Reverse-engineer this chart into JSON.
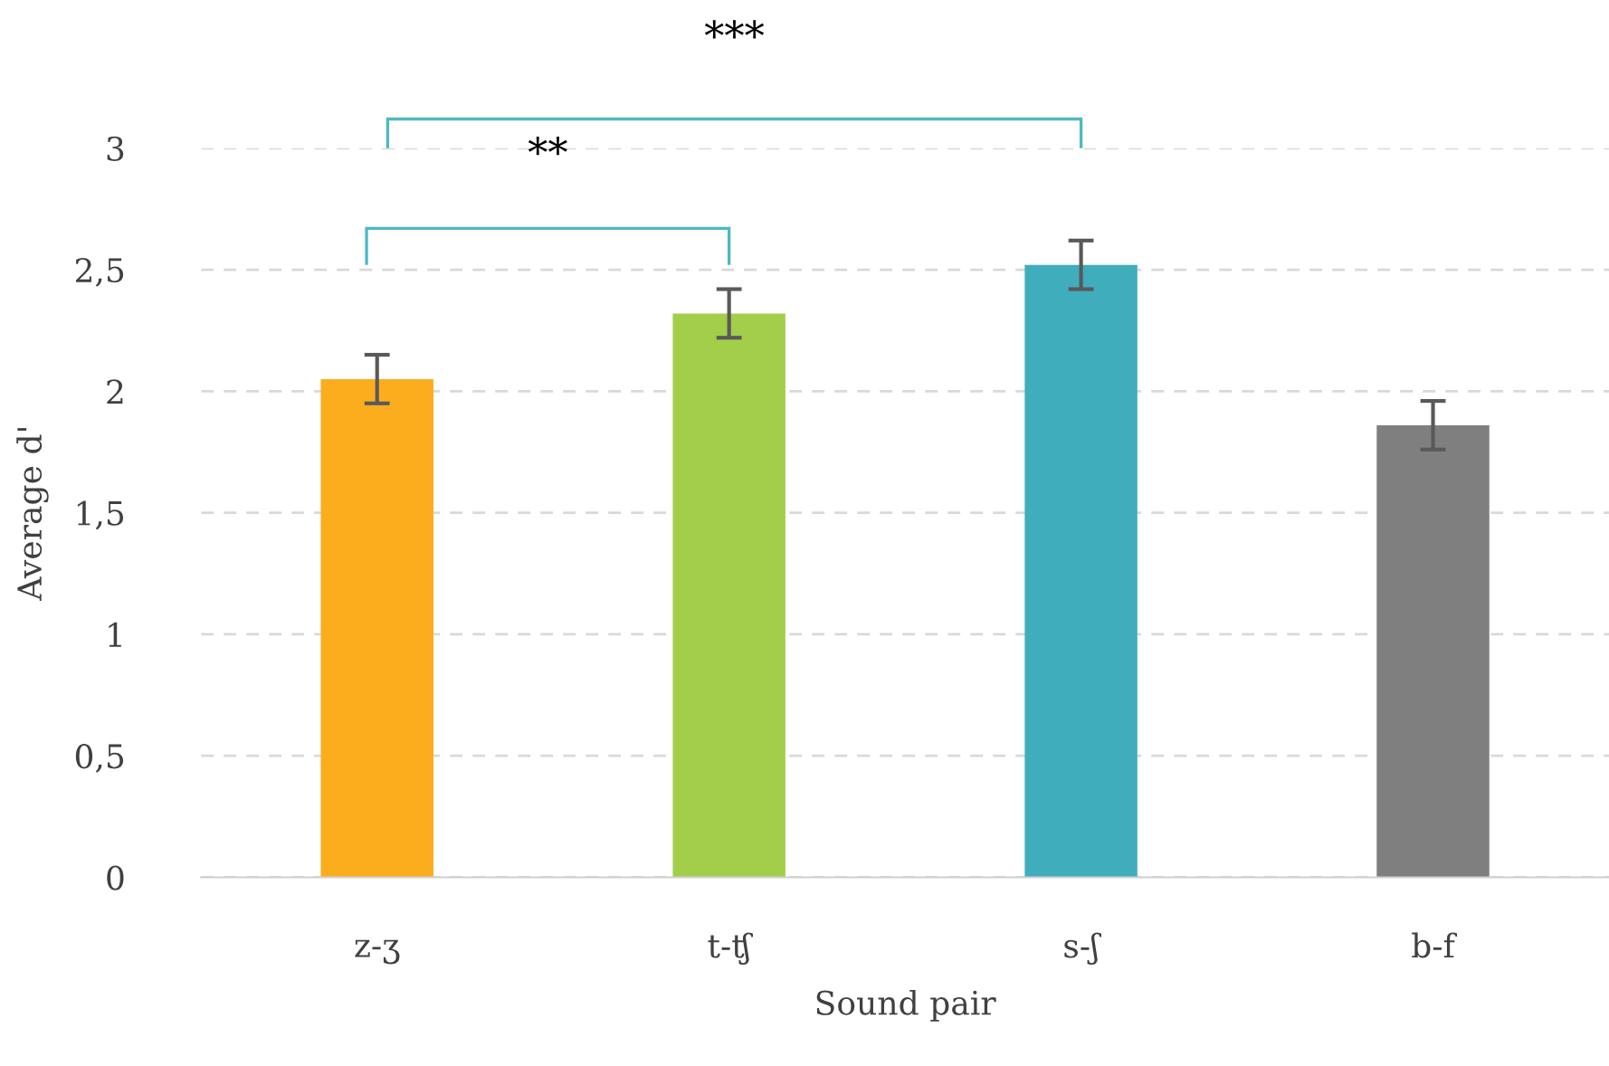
{
  "chart_data": {
    "type": "bar",
    "xlabel": "Sound pair",
    "ylabel": "Average d'",
    "categories": [
      "z-ʒ",
      "t-ʧ",
      "s-ʃ",
      "b-f"
    ],
    "values": [
      2.05,
      2.32,
      2.52,
      1.86
    ],
    "colors": [
      "#fbad1e",
      "#a2ce4a",
      "#40adbc",
      "#7f7f7f"
    ],
    "errors": [
      0.1,
      0.1,
      0.1,
      0.1
    ],
    "ylim": [
      0,
      3
    ],
    "yticks": [
      0,
      {
        "value": 0.5,
        "label": "0,5"
      },
      1,
      {
        "value": 1.5,
        "label": "1,5"
      },
      2,
      {
        "value": 2.5,
        "label": "2,5"
      },
      3
    ],
    "grid": "y",
    "annotations": [
      "**",
      "***"
    ],
    "legend": false
  }
}
